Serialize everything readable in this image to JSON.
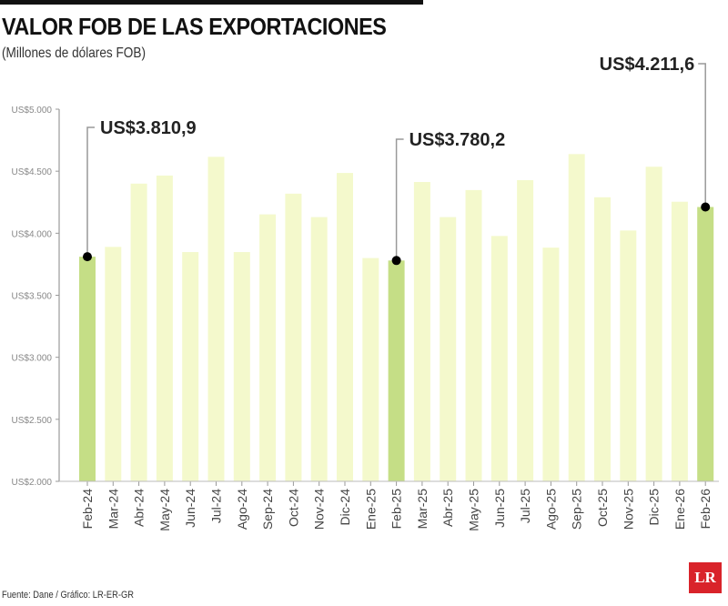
{
  "title": "VALOR FOB DE LAS EXPORTACIONES",
  "subtitle": "(Millones de dólares FOB)",
  "source": "Fuente: Dane / Gráfico: LR-ER-GR",
  "logo": "LR",
  "chart_data": {
    "type": "bar",
    "title": "VALOR FOB DE LAS EXPORTACIONES",
    "ylabel": "(Millones de dólares FOB)",
    "ylim": [
      2000,
      5000
    ],
    "yticks": [
      2000,
      2500,
      3000,
      3500,
      4000,
      4500,
      5000
    ],
    "ytick_labels": [
      "US$2.000",
      "US$2.500",
      "US$3.000",
      "US$3.500",
      "US$4.000",
      "US$4.500",
      "US$5.000"
    ],
    "categories": [
      "Feb-24",
      "Mar-24",
      "Abr-24",
      "May-24",
      "Jun-24",
      "Jul-24",
      "Ago-24",
      "Sep-24",
      "Oct-24",
      "Nov-24",
      "Dic-24",
      "Ene-25",
      "Feb-25",
      "Mar-25",
      "Abr-25",
      "May-25",
      "Jun-25",
      "Jul-25",
      "Ago-25",
      "Sep-25",
      "Oct-25",
      "Nov-25",
      "Dic-25",
      "Ene-26",
      "Feb-26"
    ],
    "values": [
      3810.9,
      3890,
      4400,
      4465,
      3848,
      4616,
      3848,
      4152,
      4319,
      4130,
      4486,
      3800,
      3780.2,
      4413,
      4130,
      4348,
      3978,
      4428,
      3884,
      4638,
      4290,
      4022,
      4536,
      4254,
      4211.6
    ],
    "highlighted": [
      0,
      12,
      24
    ],
    "annotations": [
      {
        "index": 0,
        "label": "US$3.810,9"
      },
      {
        "index": 12,
        "label": "US$3.780,2"
      },
      {
        "index": 24,
        "label": "US$4.211,6"
      }
    ],
    "colors": {
      "bar": "#f4f9cc",
      "highlight": "#c5de86",
      "marker": "#000000"
    },
    "grid": false
  }
}
